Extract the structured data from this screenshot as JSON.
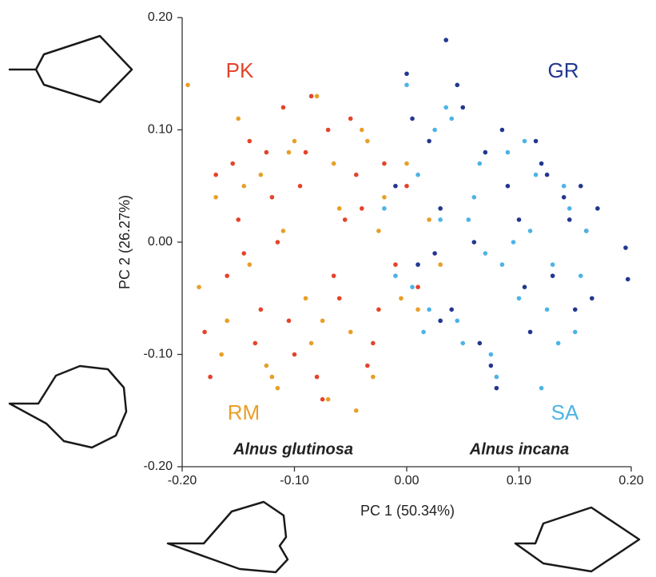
{
  "chart_data": {
    "type": "scatter",
    "x_label": "PC 1 (50.34%)",
    "y_label": "PC 2 (26.27%)",
    "xlim": [
      -0.2,
      0.2
    ],
    "ylim": [
      -0.2,
      0.2
    ],
    "xticks": [
      {
        "value": -0.2,
        "label": "-0.20"
      },
      {
        "value": -0.1,
        "label": "-0.10"
      },
      {
        "value": 0,
        "label": "0.00"
      },
      {
        "value": 0.1,
        "label": "0.10"
      },
      {
        "value": 0.2,
        "label": "0.20"
      }
    ],
    "yticks": [
      {
        "value": -0.2,
        "label": "-0.20"
      },
      {
        "value": -0.1,
        "label": "-0.10"
      },
      {
        "value": 0,
        "label": "0.00"
      },
      {
        "value": 0.1,
        "label": "0.10"
      },
      {
        "value": 0.2,
        "label": "0.20"
      }
    ],
    "grid": false,
    "annotations": [
      "Alnus glutinosa",
      "Alnus incana"
    ],
    "series": [
      {
        "name": "RM",
        "color": "#e89f26",
        "x": [
          -0.195,
          -0.185,
          -0.17,
          -0.16,
          -0.15,
          -0.14,
          -0.13,
          -0.12,
          -0.11,
          -0.1,
          -0.09,
          -0.08,
          -0.07,
          -0.06,
          -0.05,
          -0.04,
          -0.03,
          -0.02,
          -0.01,
          0.0,
          0.01,
          0.02,
          -0.165,
          -0.145,
          -0.125,
          -0.105,
          -0.085,
          -0.065,
          -0.045,
          -0.025,
          -0.005,
          -0.115,
          -0.075,
          -0.035,
          0.03
        ],
        "y": [
          0.14,
          -0.04,
          0.04,
          -0.07,
          0.11,
          -0.02,
          0.06,
          -0.12,
          0.01,
          0.09,
          -0.05,
          0.13,
          -0.14,
          0.03,
          -0.08,
          0.1,
          -0.12,
          0.04,
          -0.03,
          0.07,
          -0.06,
          0.02,
          -0.1,
          0.05,
          -0.11,
          0.08,
          -0.09,
          0.07,
          -0.15,
          0.01,
          -0.05,
          -0.13,
          -0.07,
          0.09,
          -0.02
        ]
      },
      {
        "name": "PK",
        "color": "#e5432a",
        "x": [
          -0.18,
          -0.17,
          -0.16,
          -0.15,
          -0.14,
          -0.13,
          -0.12,
          -0.11,
          -0.1,
          -0.09,
          -0.08,
          -0.07,
          -0.06,
          -0.05,
          -0.04,
          -0.03,
          -0.02,
          -0.01,
          0.0,
          0.01,
          -0.175,
          -0.155,
          -0.135,
          -0.115,
          -0.095,
          -0.075,
          -0.055,
          -0.035,
          -0.125,
          -0.105,
          -0.085,
          -0.065,
          -0.045,
          -0.025,
          -0.145
        ],
        "y": [
          -0.08,
          0.06,
          -0.03,
          0.02,
          0.09,
          -0.06,
          0.04,
          0.12,
          -0.1,
          0.08,
          -0.12,
          0.1,
          -0.05,
          0.11,
          0.03,
          -0.09,
          0.07,
          -0.02,
          0.05,
          -0.04,
          -0.12,
          0.07,
          -0.09,
          0.0,
          0.05,
          -0.14,
          0.02,
          -0.11,
          0.08,
          -0.07,
          0.13,
          -0.03,
          0.06,
          -0.06,
          -0.01
        ]
      },
      {
        "name": "GR",
        "color": "#22378f",
        "x": [
          -0.01,
          0.0,
          0.01,
          0.02,
          0.03,
          0.04,
          0.05,
          0.06,
          0.07,
          0.08,
          0.09,
          0.1,
          0.11,
          0.12,
          0.13,
          0.14,
          0.15,
          0.16,
          0.17,
          0.195,
          0.197,
          0.005,
          0.025,
          0.045,
          0.065,
          0.085,
          0.105,
          0.125,
          0.145,
          0.165,
          0.035,
          0.075,
          0.115,
          0.155,
          0.03
        ],
        "y": [
          0.05,
          0.15,
          -0.02,
          0.09,
          0.03,
          -0.06,
          0.12,
          0.0,
          0.08,
          -0.13,
          0.05,
          0.02,
          -0.08,
          0.07,
          -0.03,
          0.04,
          -0.06,
          0.01,
          0.03,
          -0.005,
          -0.033,
          0.11,
          -0.01,
          0.14,
          -0.09,
          0.1,
          -0.04,
          0.06,
          0.02,
          -0.05,
          0.18,
          -0.11,
          0.09,
          0.05,
          -0.07
        ]
      },
      {
        "name": "SA",
        "color": "#4db3e6",
        "x": [
          -0.02,
          -0.01,
          0.0,
          0.01,
          0.02,
          0.03,
          0.04,
          0.05,
          0.06,
          0.07,
          0.08,
          0.09,
          0.1,
          0.11,
          0.12,
          0.13,
          0.14,
          0.15,
          0.16,
          0.005,
          0.025,
          0.045,
          0.065,
          0.085,
          0.105,
          0.125,
          0.145,
          0.155,
          0.035,
          0.075,
          0.095,
          0.115,
          0.135,
          0.055,
          0.015
        ],
        "y": [
          0.03,
          -0.03,
          0.14,
          0.06,
          -0.06,
          0.02,
          0.11,
          -0.09,
          0.04,
          -0.01,
          -0.12,
          0.08,
          -0.05,
          0.01,
          -0.13,
          -0.02,
          0.05,
          -0.08,
          0.01,
          -0.04,
          0.1,
          -0.07,
          0.07,
          -0.02,
          0.09,
          -0.06,
          0.03,
          -0.03,
          0.12,
          -0.1,
          0.0,
          0.06,
          -0.09,
          0.02,
          -0.08
        ]
      }
    ]
  }
}
